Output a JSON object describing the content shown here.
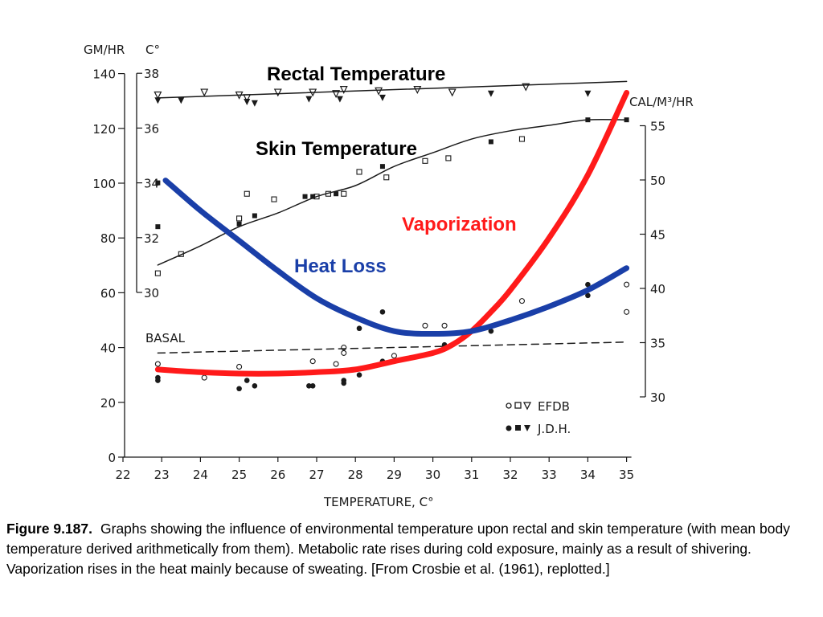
{
  "chart_data": {
    "type": "line",
    "xlabel": "TEMPERATURE, C°",
    "x_ticks": [
      22,
      23,
      24,
      25,
      26,
      27,
      28,
      29,
      30,
      31,
      32,
      33,
      34,
      35
    ],
    "xlim": [
      22,
      35
    ],
    "left_axis_gm": {
      "unit_label": "GM/HR",
      "ticks": [
        0,
        20,
        40,
        60,
        80,
        100,
        120,
        140
      ],
      "ylim": [
        0,
        140
      ]
    },
    "left_axis_c": {
      "unit_label": "C°",
      "ticks": [
        30,
        32,
        34,
        36,
        38
      ],
      "ylim": [
        30,
        38
      ]
    },
    "right_axis_cal": {
      "unit_label": "CAL/M³/HR",
      "ticks": [
        30,
        35,
        40,
        45,
        50,
        55
      ],
      "ylim": [
        30,
        55
      ]
    },
    "basal_label": "BASAL",
    "annotations": {
      "rectal": "Rectal Temperature",
      "skin": "Skin Temperature",
      "vaporization": "Vaporization",
      "heat_loss": "Heat Loss"
    },
    "legend": {
      "efdb": "EFDB",
      "jdh": "J.D.H."
    },
    "colors": {
      "vaporization": "#ff1a1a",
      "heat_loss": "#1a3fa8",
      "ink": "#1a1a1a"
    },
    "series": [
      {
        "name": "Rectal Temperature",
        "axis": "c",
        "x": [
          22.9,
          35
        ],
        "y": [
          37.1,
          37.7
        ],
        "color": "#1a1a1a"
      },
      {
        "name": "Skin Temperature",
        "axis": "c",
        "x": [
          22.9,
          24,
          25,
          26,
          27,
          28,
          29,
          30,
          31,
          32,
          33,
          34,
          35
        ],
        "y": [
          31.0,
          31.7,
          32.4,
          32.9,
          33.5,
          33.9,
          34.6,
          35.1,
          35.6,
          35.9,
          36.1,
          36.3,
          36.3
        ],
        "color": "#1a1a1a"
      },
      {
        "name": "Vaporization",
        "axis": "gm",
        "x": [
          22.9,
          24,
          25,
          26,
          27,
          28,
          29,
          30,
          30.5,
          31,
          31.5,
          32,
          33,
          34,
          35
        ],
        "y": [
          32,
          31,
          30.5,
          30.5,
          31,
          32,
          35,
          38,
          41,
          46,
          53,
          61,
          80,
          103,
          133
        ],
        "color": "#ff1a1a"
      },
      {
        "name": "Heat Loss",
        "axis": "gm",
        "x": [
          23.1,
          24,
          25,
          26,
          27,
          28,
          29,
          30,
          31,
          32,
          33,
          34,
          35
        ],
        "y": [
          101,
          90,
          79,
          68,
          58,
          51,
          46,
          45,
          46,
          50,
          55,
          61,
          69
        ],
        "color": "#1a3fa8"
      },
      {
        "name": "BASAL",
        "axis": "gm",
        "x": [
          22.9,
          35
        ],
        "y": [
          38,
          42
        ],
        "color": "#1a1a1a",
        "dashed": true
      }
    ],
    "points": {
      "rectal_open": [
        [
          22.9,
          37.2
        ],
        [
          24.1,
          37.3
        ],
        [
          25,
          37.2
        ],
        [
          25.2,
          37.1
        ],
        [
          26,
          37.3
        ],
        [
          26.9,
          37.3
        ],
        [
          27.5,
          37.25
        ],
        [
          27.7,
          37.4
        ],
        [
          28.6,
          37.35
        ],
        [
          29.6,
          37.4
        ],
        [
          30.5,
          37.3
        ],
        [
          32.4,
          37.5
        ]
      ],
      "rectal_filled": [
        [
          22.9,
          37.0
        ],
        [
          23.5,
          37.0
        ],
        [
          25.2,
          36.95
        ],
        [
          25.4,
          36.9
        ],
        [
          26.8,
          37.05
        ],
        [
          27.6,
          37.05
        ],
        [
          28.7,
          37.1
        ],
        [
          31.5,
          37.25
        ],
        [
          34,
          37.25
        ]
      ],
      "skin_open": [
        [
          22.9,
          30.7
        ],
        [
          23.5,
          31.4
        ],
        [
          25,
          32.7
        ],
        [
          25.2,
          33.6
        ],
        [
          25.9,
          33.4
        ],
        [
          27,
          33.5
        ],
        [
          27.3,
          33.6
        ],
        [
          27.7,
          33.6
        ],
        [
          28.1,
          34.4
        ],
        [
          28.8,
          34.2
        ],
        [
          29.8,
          34.8
        ],
        [
          30.4,
          34.9
        ],
        [
          32.3,
          35.6
        ]
      ],
      "skin_filled": [
        [
          22.9,
          32.4
        ],
        [
          22.9,
          34.0
        ],
        [
          25.0,
          32.5
        ],
        [
          25.4,
          32.8
        ],
        [
          26.7,
          33.5
        ],
        [
          26.9,
          33.5
        ],
        [
          27.5,
          33.6
        ],
        [
          28.7,
          34.6
        ],
        [
          31.5,
          35.5
        ],
        [
          34,
          36.3
        ],
        [
          35,
          36.3
        ]
      ],
      "gm_open": [
        [
          22.9,
          34
        ],
        [
          24.1,
          29
        ],
        [
          25,
          33
        ],
        [
          26.9,
          35
        ],
        [
          27.5,
          34
        ],
        [
          27.7,
          40
        ],
        [
          27.7,
          38
        ],
        [
          29,
          37
        ],
        [
          29.8,
          48
        ],
        [
          30.3,
          48
        ],
        [
          32.3,
          57
        ],
        [
          35,
          53
        ],
        [
          35,
          63
        ]
      ],
      "gm_filled": [
        [
          22.9,
          28
        ],
        [
          22.9,
          29
        ],
        [
          25,
          25
        ],
        [
          25.4,
          26
        ],
        [
          25.2,
          28
        ],
        [
          26.8,
          26
        ],
        [
          26.9,
          26
        ],
        [
          27.7,
          28
        ],
        [
          27.7,
          27
        ],
        [
          28.1,
          30
        ],
        [
          28.1,
          47
        ],
        [
          28.7,
          35
        ],
        [
          28.7,
          53
        ],
        [
          30.3,
          41
        ],
        [
          31.5,
          46
        ],
        [
          34,
          59
        ],
        [
          34,
          63
        ]
      ]
    }
  },
  "caption": {
    "label": "Figure 9.187.",
    "text": "Graphs showing the influence of environmental temperature upon rectal and skin temperature (with mean body temperature derived arithmetically from them). Metabolic rate rises during cold exposure, mainly as a result of shivering. Vaporization rises in the heat mainly because of sweating. [From Crosbie et al. (1961), replotted.]"
  }
}
